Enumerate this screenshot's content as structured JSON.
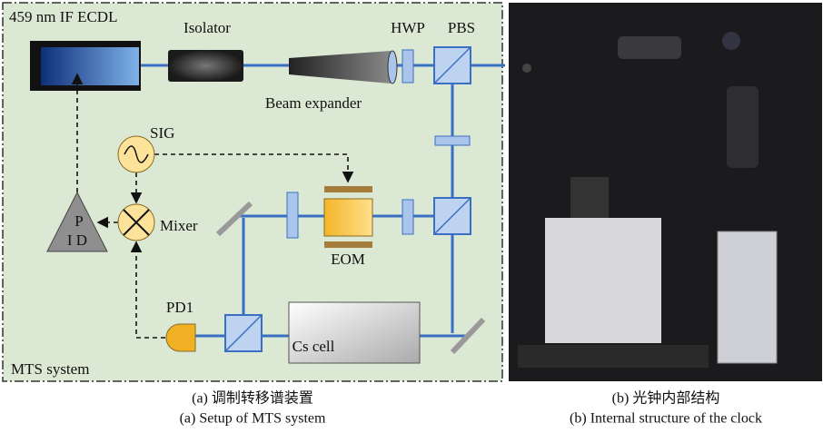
{
  "laser": "459 nm IF ECDL",
  "isolator": "Isolator",
  "beam_expander": "Beam expander",
  "hwp": "HWP",
  "pbs": "PBS",
  "sig": "SIG",
  "mixer": "Mixer",
  "pid": {
    "line1": "P",
    "line2": "I D"
  },
  "eom": "EOM",
  "pd1": "PD1",
  "cs_cell": "Cs cell",
  "system": "MTS system",
  "caption_a": {
    "zh": "(a) 调制转移谱装置",
    "en": "(a) Setup of MTS system"
  },
  "caption_b": {
    "zh": "(b) 光钟内部结构",
    "en": "(b) Internal structure of the clock"
  }
}
